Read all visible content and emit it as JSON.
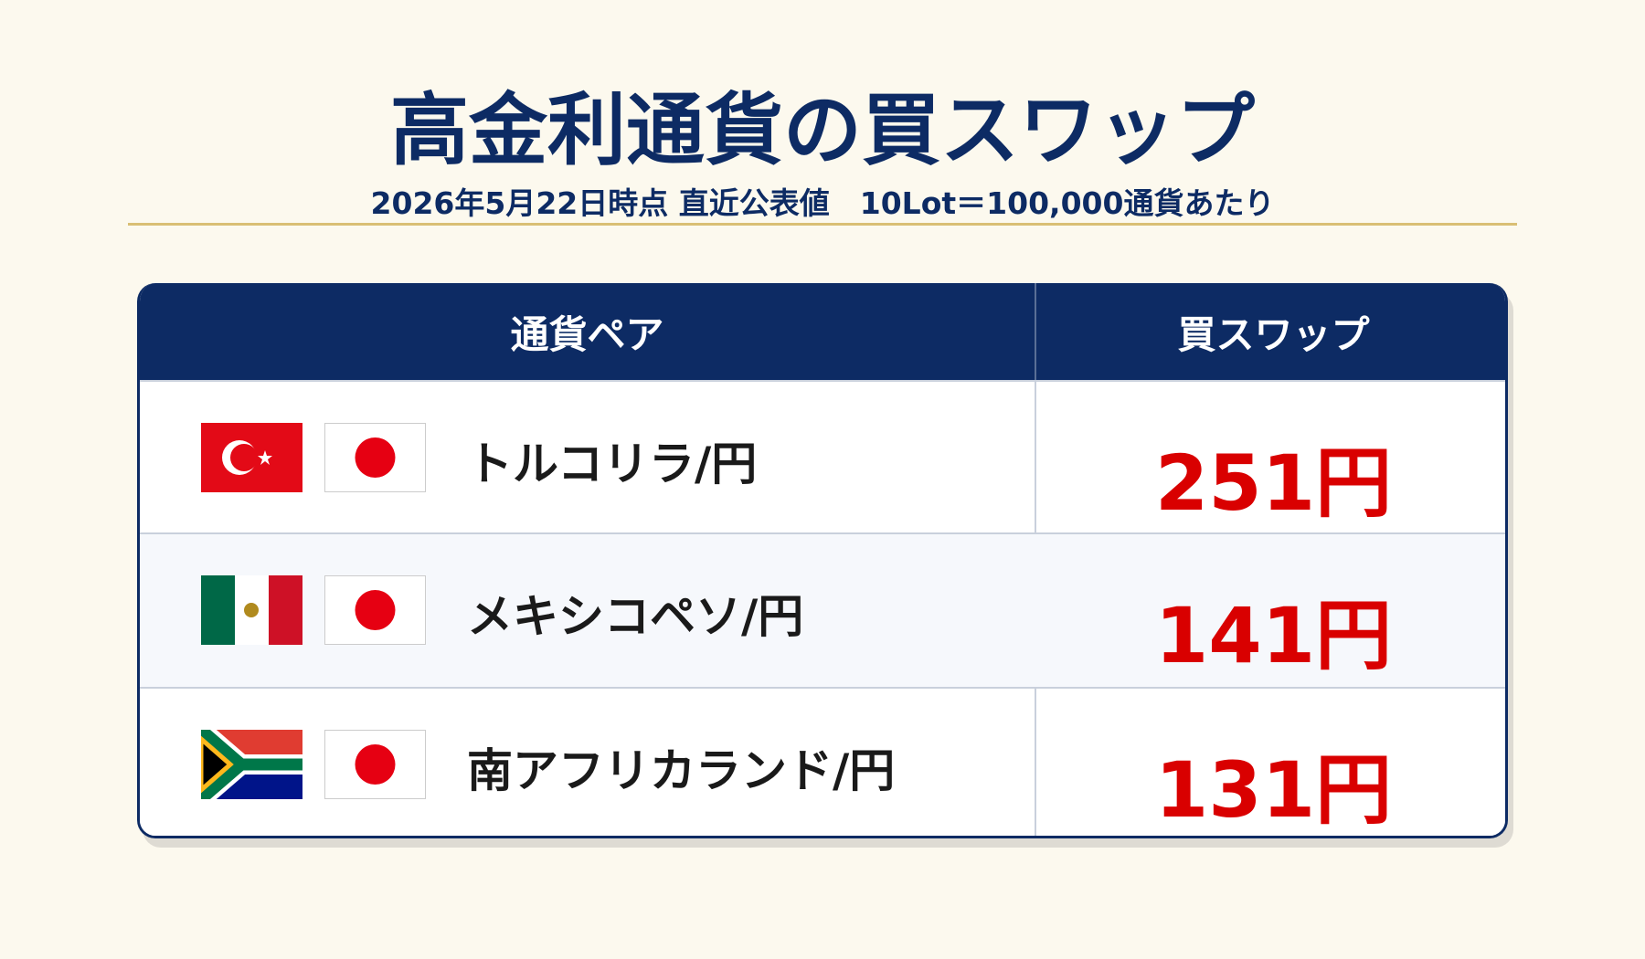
{
  "header": {
    "title": "高金利通貨の買スワップ",
    "subtitle": "2026年5月22日時点 直近公表値　10Lot＝100,000通貨あたり"
  },
  "table": {
    "columns": [
      "通貨ペア",
      "買スワップ"
    ],
    "rows": [
      {
        "pair": "トルコリラ/円",
        "swap": "251円"
      },
      {
        "pair": "メキシコペソ/円",
        "swap": "141円"
      },
      {
        "pair": "南アフリカランド/円",
        "swap": "131円"
      }
    ]
  }
}
